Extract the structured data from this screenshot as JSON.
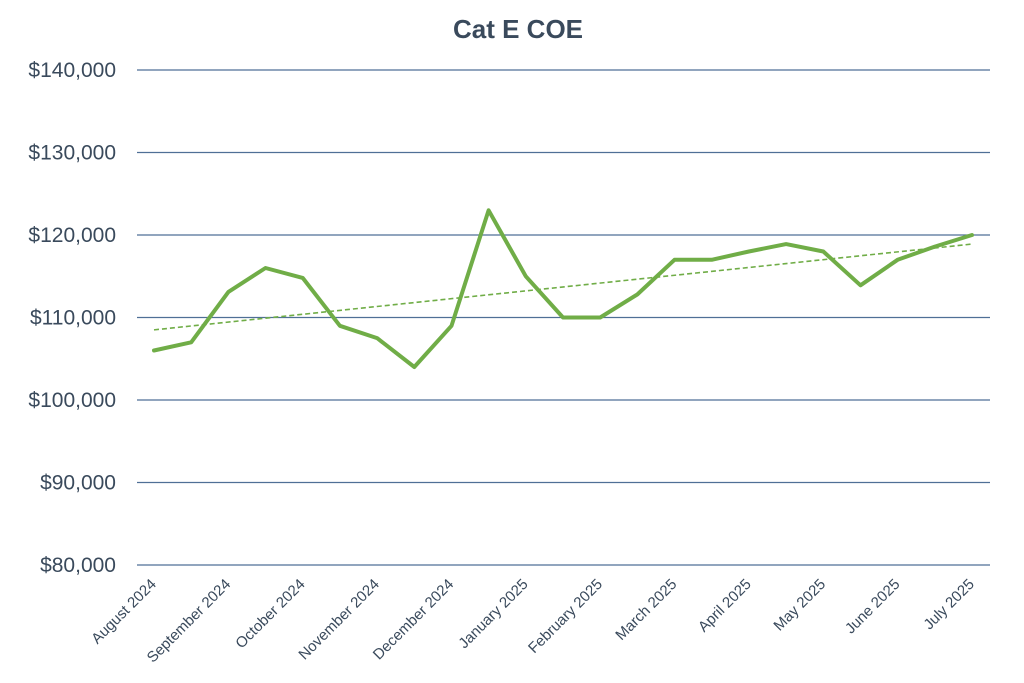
{
  "chart_data": {
    "type": "line",
    "title": "Cat E COE",
    "xlabel": "",
    "ylabel": "",
    "ylim": [
      80000,
      140000
    ],
    "y_ticks": [
      80000,
      90000,
      100000,
      110000,
      120000,
      130000,
      140000
    ],
    "y_tick_labels": [
      "$80,000",
      "$90,000",
      "$100,000",
      "$110,000",
      "$120,000",
      "$130,000",
      "$140,000"
    ],
    "grid": true,
    "x_tick_labels": [
      "August 2024",
      "September 2024",
      "October 2024",
      "November 2024",
      "December 2024",
      "January 2025",
      "February 2025",
      "March 2025",
      "April 2025",
      "May 2025",
      "June 2025",
      "July 2025"
    ],
    "series": [
      {
        "color": "#70ad47",
        "values": [
          106000,
          107000,
          113100,
          116000,
          114800,
          109000,
          107500,
          104000,
          109000,
          123000,
          115000,
          110000,
          110000,
          112800,
          117000,
          117000,
          118000,
          118900,
          118000,
          113900,
          117000,
          118600,
          120000
        ]
      }
    ],
    "trendline": {
      "style": "dashed linear",
      "color": "#70ad47",
      "start_value": 108500,
      "end_value": 118900
    }
  }
}
